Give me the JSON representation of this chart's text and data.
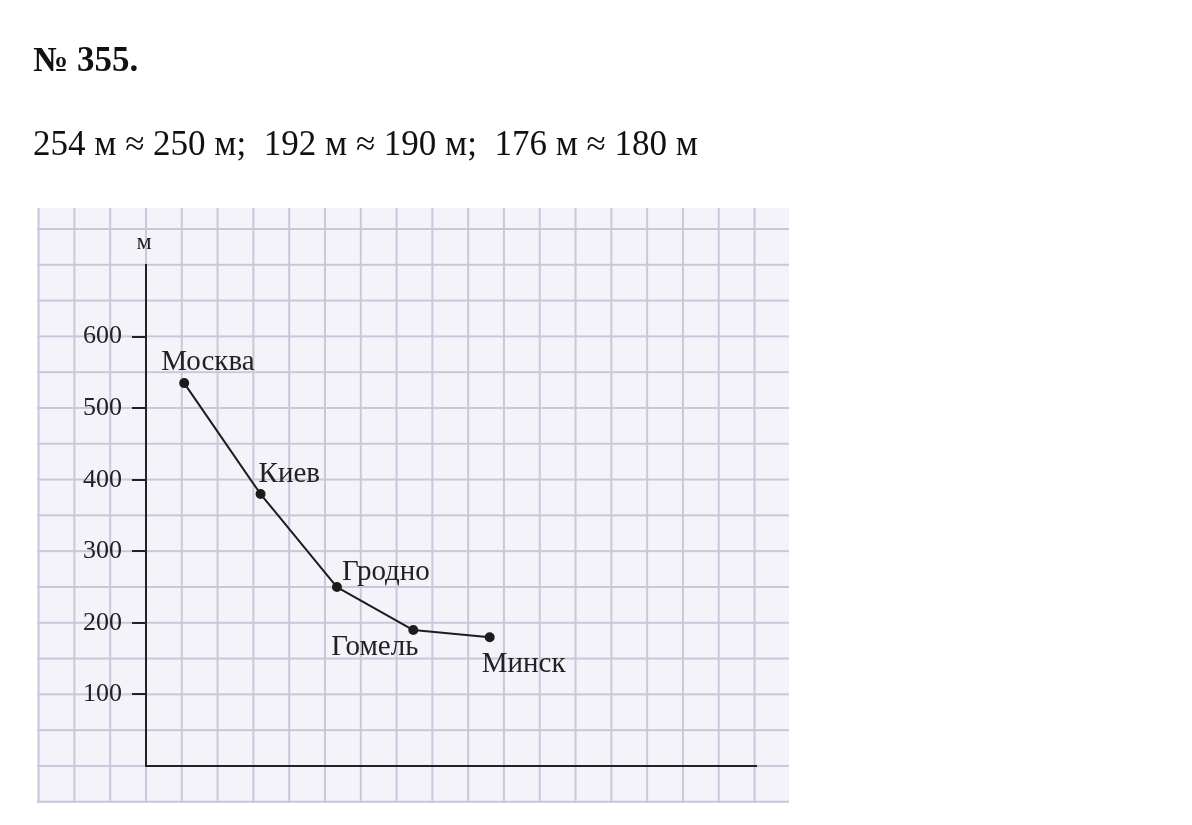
{
  "chart_data": {
    "type": "line",
    "title": "№ 355.",
    "subtitle": "254 м ≈ 250 м;  192 м ≈ 190 м;  176 м ≈ 180 м",
    "ylabel": "м",
    "categories": [
      null,
      null,
      null,
      null,
      null,
      null,
      null,
      null
    ],
    "values": [
      535,
      380,
      250,
      190,
      180,
      null,
      null,
      null
    ],
    "color": "#1c1c1c",
    "marker": "circle",
    "ylim": [
      0,
      700
    ],
    "yticks": [
      100,
      200,
      300,
      400,
      500,
      600
    ],
    "tick_labels": "y",
    "annotations": [
      "Москва",
      "Киев",
      "Гродно",
      "Гомель",
      "Минск"
    ]
  }
}
